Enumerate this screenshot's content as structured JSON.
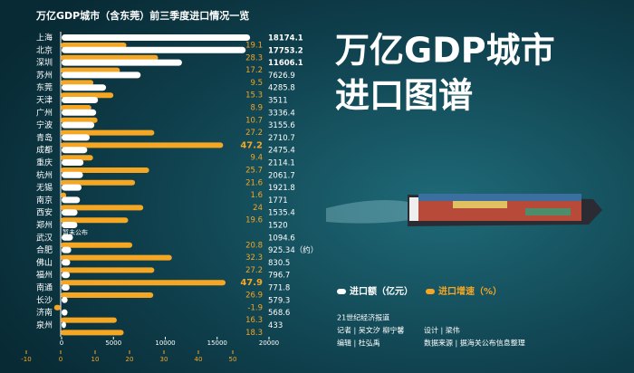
{
  "chart_data": {
    "type": "bar",
    "orientation": "horizontal",
    "title": "万亿GDP城市（含东莞）前三季度进口情况一览",
    "headline": [
      "万亿GDP城市",
      "进口图谱"
    ],
    "categories": [
      "上海",
      "北京",
      "深圳",
      "苏州",
      "东莞",
      "天津",
      "广州",
      "宁波",
      "青岛",
      "成都",
      "重庆",
      "杭州",
      "无锡",
      "南京",
      "西安",
      "郑州",
      "武汉",
      "合肥",
      "佛山",
      "福州",
      "南通",
      "长沙",
      "济南",
      "泉州"
    ],
    "series": [
      {
        "name": "进口额（亿元）",
        "color": "#ffffff",
        "values": [
          18174.1,
          17753.2,
          11606.1,
          7626.9,
          4285.8,
          3511,
          3336.4,
          3155.6,
          2710.7,
          2475.4,
          2114.1,
          2061.7,
          1921.8,
          1771,
          1535.4,
          1520,
          1094.6,
          925.34,
          830.5,
          796.7,
          771.8,
          579.3,
          568.6,
          433
        ],
        "value_labels": [
          "18174.1",
          "17753.2",
          "11606.1",
          "7626.9",
          "4285.8",
          "3511",
          "3336.4",
          "3155.6",
          "2710.7",
          "2475.4",
          "2114.1",
          "2061.7",
          "1921.8",
          "1771",
          "1535.4",
          "1520",
          "1094.6",
          "925.34（约）",
          "830.5",
          "796.7",
          "771.8",
          "579.3",
          "568.6",
          "433"
        ]
      },
      {
        "name": "进口增速（%）",
        "color": "#f5a623",
        "axis": "x2",
        "values": [
          19.1,
          28.3,
          17.2,
          9.5,
          15.3,
          8.9,
          10.7,
          27.2,
          47.2,
          9.4,
          25.7,
          21.6,
          1.6,
          24,
          19.6,
          null,
          20.8,
          32.3,
          27.2,
          47.9,
          26.9,
          -1.9,
          16.3,
          18.3
        ],
        "value_labels": [
          "19.1",
          "28.3",
          "17.2",
          "9.5",
          "15.3",
          "8.9",
          "10.7",
          "27.2",
          "47.2",
          "9.4",
          "25.7",
          "21.6",
          "1.6",
          "24",
          "19.6",
          "暂未公布",
          "20.8",
          "32.3",
          "27.2",
          "47.9",
          "26.9",
          "-1.9",
          "16.3",
          "18.3"
        ]
      }
    ],
    "xlim": [
      0,
      20000
    ],
    "xticks": [
      0,
      5000,
      10000,
      15000,
      20000
    ],
    "x2lim": [
      -10,
      50
    ],
    "x2ticks": [
      -10,
      0,
      10,
      20,
      30,
      40,
      50
    ],
    "credits": [
      "21世纪经济报道",
      "记者 | 吴文汐 柳宁馨",
      "编辑 | 杜弘禹",
      "设计 | 梁伟",
      "数据来源 | 据海关公布信息整理"
    ]
  }
}
